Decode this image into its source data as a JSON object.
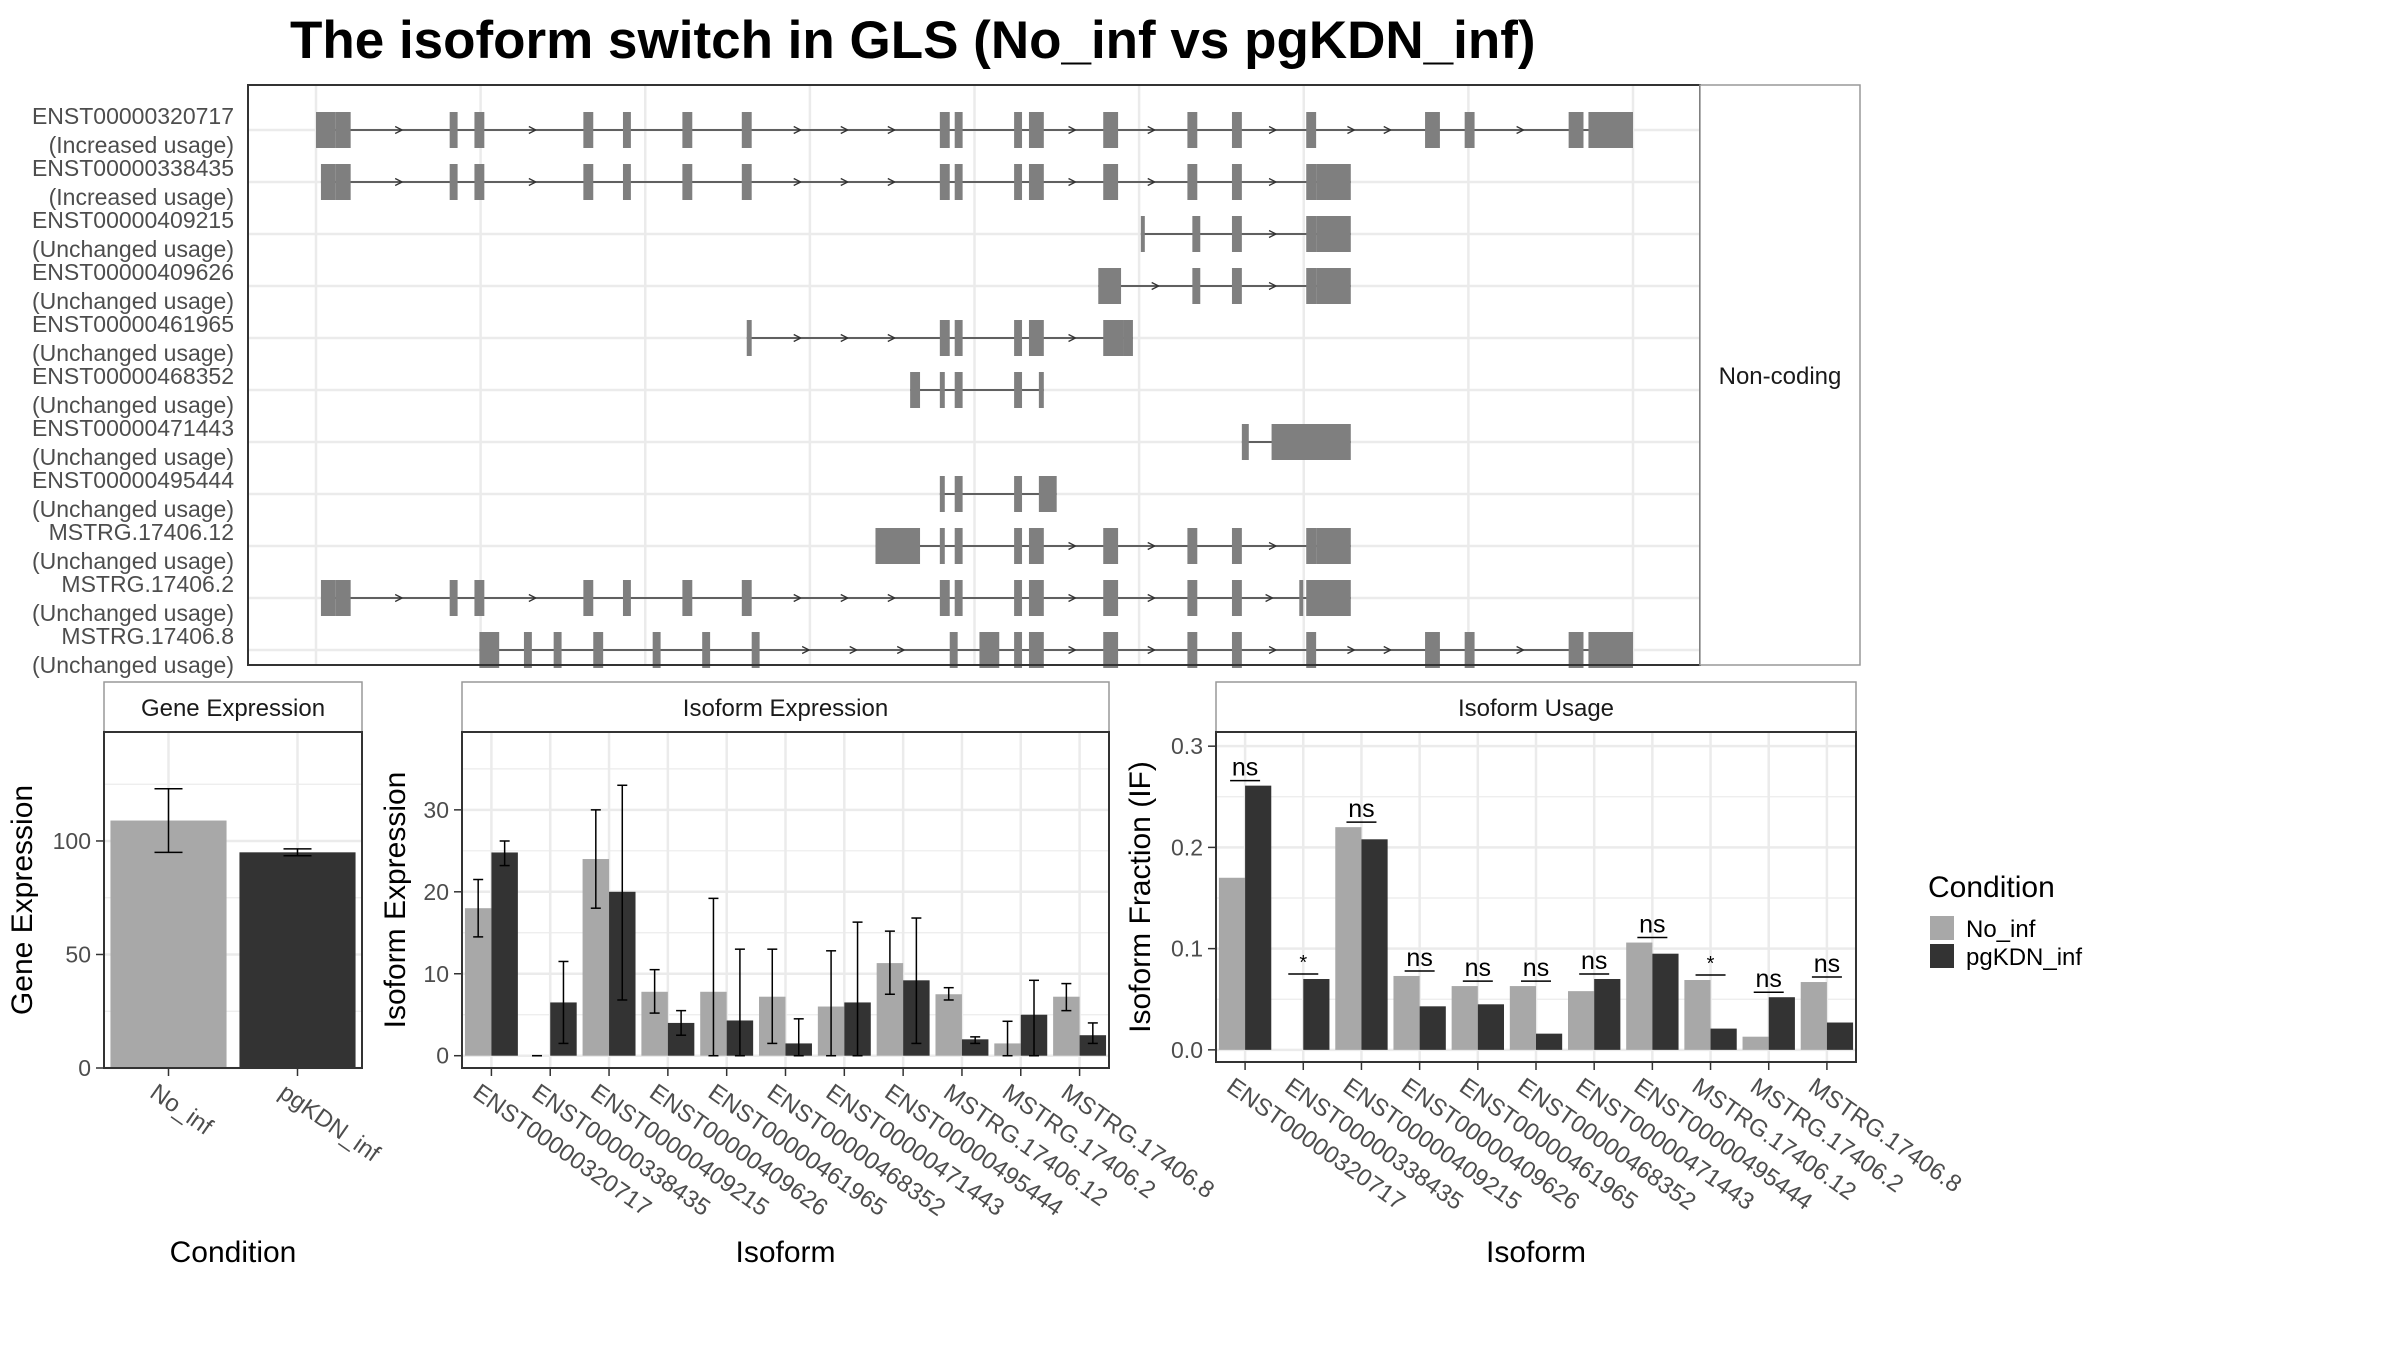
{
  "title": "The isoform switch in GLS (No_inf vs pgKDN_inf)",
  "colors": {
    "No_inf": "#a8a8a8",
    "pgKDN_inf": "#333333",
    "exon": "#7f7f7f",
    "grid": "#ebebeb",
    "frame": "#333333",
    "strip_border": "#999999"
  },
  "legend": {
    "title": "Condition",
    "items": [
      "No_inf",
      "pgKDN_inf"
    ]
  },
  "chart_data": [
    {
      "type": "gene-structure",
      "panel_label": "Non-coding",
      "x_range": [
        0,
        100
      ],
      "transcripts": [
        {
          "id": "ENST00000320717",
          "status": "(Increased usage)",
          "exons": [
            [
              0,
              2
            ],
            [
              2,
              3.5
            ],
            [
              13.5,
              14.3
            ],
            [
              16,
              17
            ],
            [
              27,
              28
            ],
            [
              31,
              31.8
            ],
            [
              37,
              38
            ],
            [
              43,
              44
            ],
            [
              63,
              64
            ],
            [
              64.5,
              65.3
            ],
            [
              70.5,
              71.3
            ],
            [
              72,
              73.5
            ],
            [
              79.5,
              81
            ],
            [
              88,
              89
            ],
            [
              92.5,
              93.5
            ],
            [
              100,
              101
            ],
            [
              112,
              113.5
            ],
            [
              116,
              117
            ],
            [
              126.5,
              128
            ],
            [
              128.5,
              133
            ]
          ],
          "arrows": true
        },
        {
          "id": "ENST00000338435",
          "status": "(Increased usage)",
          "exons": [
            [
              0.5,
              2
            ],
            [
              2,
              3.5
            ],
            [
              13.5,
              14.3
            ],
            [
              16,
              17
            ],
            [
              27,
              28
            ],
            [
              31,
              31.8
            ],
            [
              37,
              38
            ],
            [
              43,
              44
            ],
            [
              63,
              64
            ],
            [
              64.5,
              65.3
            ],
            [
              70.5,
              71.3
            ],
            [
              72,
              73.5
            ],
            [
              79.5,
              81
            ],
            [
              88,
              89
            ],
            [
              92.5,
              93.5
            ],
            [
              100,
              101
            ],
            [
              101,
              104.5
            ]
          ],
          "arrows": true
        },
        {
          "id": "ENST00000409215",
          "status": "(Unchanged usage)",
          "exons": [
            [
              83.3,
              83.7
            ],
            [
              88.5,
              89.3
            ],
            [
              92.5,
              93.5
            ],
            [
              100,
              101
            ],
            [
              101,
              104.5
            ]
          ],
          "arrows": true
        },
        {
          "id": "ENST00000409626",
          "status": "(Unchanged usage)",
          "exons": [
            [
              79,
              81.3
            ],
            [
              88.5,
              89.3
            ],
            [
              92.5,
              93.5
            ],
            [
              100,
              101
            ],
            [
              101,
              104.5
            ]
          ],
          "arrows": true
        },
        {
          "id": "ENST00000461965",
          "status": "(Unchanged usage)",
          "exons": [
            [
              43.5,
              44
            ],
            [
              63,
              64
            ],
            [
              64.5,
              65.3
            ],
            [
              70.5,
              71.3
            ],
            [
              72,
              73.5
            ],
            [
              79.5,
              81.5
            ],
            [
              81.5,
              82.5
            ]
          ],
          "arrows": true
        },
        {
          "id": "ENST00000468352",
          "status": "(Unchanged usage)",
          "exons": [
            [
              60,
              61
            ],
            [
              63,
              63.5
            ],
            [
              64.5,
              65.3
            ],
            [
              70.5,
              71.3
            ],
            [
              73,
              73.5
            ]
          ],
          "arrows": false
        },
        {
          "id": "ENST00000471443",
          "status": "(Unchanged usage)",
          "exons": [
            [
              93.5,
              94.2
            ],
            [
              96.5,
              104.5
            ]
          ],
          "arrows": false
        },
        {
          "id": "ENST00000495444",
          "status": "(Unchanged usage)",
          "exons": [
            [
              63,
              63.5
            ],
            [
              64.5,
              65.3
            ],
            [
              70.5,
              71.3
            ],
            [
              73,
              74.8
            ]
          ],
          "arrows": true
        },
        {
          "id": "MSTRG.17406.12",
          "status": "(Unchanged usage)",
          "exons": [
            [
              56.5,
              61
            ],
            [
              63,
              63.5
            ],
            [
              64.5,
              65.3
            ],
            [
              70.5,
              71.3
            ],
            [
              72,
              73.5
            ],
            [
              79.5,
              81
            ],
            [
              88,
              89
            ],
            [
              92.5,
              93.5
            ],
            [
              100,
              101
            ],
            [
              101,
              104.5
            ]
          ],
          "arrows": true
        },
        {
          "id": "MSTRG.17406.2",
          "status": "(Unchanged usage)",
          "exons": [
            [
              0.5,
              2
            ],
            [
              2,
              3.5
            ],
            [
              13.5,
              14.3
            ],
            [
              16,
              17
            ],
            [
              27,
              28
            ],
            [
              31,
              31.8
            ],
            [
              37,
              38
            ],
            [
              43,
              44
            ],
            [
              63,
              64
            ],
            [
              64.5,
              65.3
            ],
            [
              70.5,
              71.3
            ],
            [
              72,
              73.5
            ],
            [
              79.5,
              81
            ],
            [
              88,
              89
            ],
            [
              92.5,
              93.5
            ],
            [
              99.3,
              99.7
            ],
            [
              100,
              104.5
            ]
          ],
          "arrows": true
        },
        {
          "id": "MSTRG.17406.8",
          "status": "(Unchanged usage)",
          "exons": [
            [
              16.5,
              18.5
            ],
            [
              21,
              21.8
            ],
            [
              24,
              24.8
            ],
            [
              28,
              29
            ],
            [
              34,
              34.8
            ],
            [
              39,
              39.8
            ],
            [
              44,
              44.8
            ],
            [
              64,
              64.8
            ],
            [
              67,
              69
            ],
            [
              70.5,
              71.3
            ],
            [
              72,
              73.5
            ],
            [
              79.5,
              81
            ],
            [
              88,
              89
            ],
            [
              92.5,
              93.5
            ],
            [
              100,
              101
            ],
            [
              112,
              113.5
            ],
            [
              116,
              117
            ],
            [
              126.5,
              128
            ],
            [
              128.5,
              133
            ]
          ],
          "arrows": true
        }
      ]
    },
    {
      "type": "bar",
      "title": "Gene Expression",
      "xlabel": "Condition",
      "ylabel": "Gene Expression",
      "categories": [
        "No_inf",
        "pgKDN_inf"
      ],
      "values": [
        109,
        95
      ],
      "errors": [
        [
          95,
          123
        ],
        [
          93.5,
          96.5
        ]
      ],
      "ylim": [
        0,
        148
      ],
      "yticks": [
        0,
        50,
        100
      ],
      "grid": true
    },
    {
      "type": "bar",
      "title": "Isoform Expression",
      "xlabel": "Isoform",
      "ylabel": "Isoform Expression",
      "categories": [
        "ENST00000320717",
        "ENST00000338435",
        "ENST00000409215",
        "ENST00000409626",
        "ENST00000461965",
        "ENST00000468352",
        "ENST00000471443",
        "ENST00000495444",
        "MSTRG.17406.12",
        "MSTRG.17406.2",
        "MSTRG.17406.8"
      ],
      "series": [
        {
          "name": "No_inf",
          "values": [
            18,
            0,
            24,
            7.8,
            7.8,
            7.2,
            6.0,
            11.3,
            7.5,
            1.5,
            7.2
          ],
          "errors": [
            [
              14.5,
              21.5
            ],
            [
              0,
              0
            ],
            [
              18,
              30
            ],
            [
              5.2,
              10.5
            ],
            [
              0,
              19.2
            ],
            [
              1.5,
              13
            ],
            [
              0,
              12.8
            ],
            [
              7.5,
              15.2
            ],
            [
              6.8,
              8.3
            ],
            [
              0,
              4.2
            ],
            [
              5.5,
              8.8
            ]
          ]
        },
        {
          "name": "pgKDN_inf",
          "values": [
            24.8,
            6.5,
            20,
            4.0,
            4.3,
            1.5,
            6.5,
            9.2,
            2.0,
            5.0,
            2.5
          ],
          "errors": [
            [
              23.2,
              26.2
            ],
            [
              1.5,
              11.5
            ],
            [
              6.8,
              33
            ],
            [
              2.5,
              5.5
            ],
            [
              0,
              13
            ],
            [
              0,
              4.5
            ],
            [
              0,
              16.3
            ],
            [
              1.5,
              16.8
            ],
            [
              1.5,
              2.3
            ],
            [
              0,
              9.2
            ],
            [
              1.5,
              4
            ]
          ]
        }
      ],
      "ylim": [
        -1.5,
        39.5
      ],
      "yticks": [
        0,
        10,
        20,
        30
      ],
      "grid": true
    },
    {
      "type": "bar",
      "title": "Isoform Usage",
      "xlabel": "Isoform",
      "ylabel": "Isoform Fraction (IF)",
      "categories": [
        "ENST00000320717",
        "ENST00000338435",
        "ENST00000409215",
        "ENST00000409626",
        "ENST00000461965",
        "ENST00000468352",
        "ENST00000471443",
        "ENST00000495444",
        "MSTRG.17406.12",
        "MSTRG.17406.2",
        "MSTRG.17406.8"
      ],
      "series": [
        {
          "name": "No_inf",
          "values": [
            0.17,
            0.0,
            0.22,
            0.073,
            0.063,
            0.063,
            0.058,
            0.106,
            0.069,
            0.013,
            0.067
          ]
        },
        {
          "name": "pgKDN_inf",
          "values": [
            0.261,
            0.07,
            0.208,
            0.043,
            0.045,
            0.016,
            0.07,
            0.095,
            0.021,
            0.052,
            0.027
          ]
        }
      ],
      "significance": [
        "ns",
        "*",
        "ns",
        "ns",
        "ns",
        "ns",
        "ns",
        "ns",
        "*",
        "ns",
        "ns"
      ],
      "ylim": [
        -0.012,
        0.314
      ],
      "yticks": [
        0.0,
        0.1,
        0.2,
        0.3
      ],
      "ytick_labels": [
        "0.0",
        "0.1",
        "0.2",
        "0.3"
      ],
      "grid": true
    }
  ]
}
